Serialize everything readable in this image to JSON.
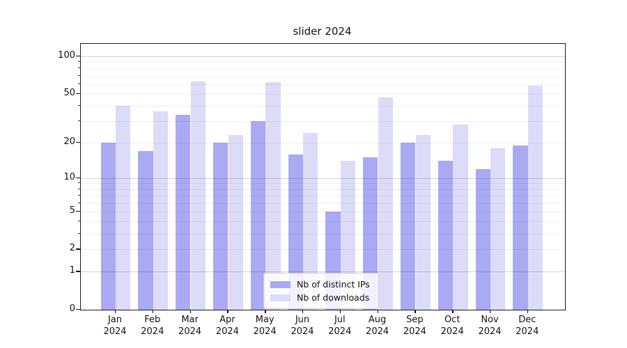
{
  "title": "slider 2024",
  "chart_data": {
    "type": "bar",
    "title": "slider 2024",
    "categories": [
      {
        "month": "Jan",
        "year": "2024"
      },
      {
        "month": "Feb",
        "year": "2024"
      },
      {
        "month": "Mar",
        "year": "2024"
      },
      {
        "month": "Apr",
        "year": "2024"
      },
      {
        "month": "May",
        "year": "2024"
      },
      {
        "month": "Jun",
        "year": "2024"
      },
      {
        "month": "Jul",
        "year": "2024"
      },
      {
        "month": "Aug",
        "year": "2024"
      },
      {
        "month": "Sep",
        "year": "2024"
      },
      {
        "month": "Oct",
        "year": "2024"
      },
      {
        "month": "Nov",
        "year": "2024"
      },
      {
        "month": "Dec",
        "year": "2024"
      }
    ],
    "series": [
      {
        "name": "Nb of distinct IPs",
        "color": "#a9a9f4",
        "values": [
          20,
          17,
          34,
          20,
          30,
          16,
          5,
          15,
          20,
          14,
          12,
          19
        ]
      },
      {
        "name": "Nb of downloads",
        "color": "#dcdcf8",
        "values": [
          40,
          36,
          63,
          23,
          62,
          24,
          14,
          47,
          23,
          28,
          18,
          58
        ]
      }
    ],
    "yscale": "log1p",
    "ylim": [
      0,
      126
    ],
    "y_tick_values": [
      100,
      50,
      20,
      10,
      5,
      2,
      1,
      0
    ],
    "y_minor_grid_values": [
      2,
      3,
      4,
      5,
      6,
      7,
      8,
      9,
      20,
      30,
      40,
      50,
      60,
      70,
      80,
      90
    ],
    "y_major_grid_values": [
      1,
      10,
      100
    ],
    "grid": "horizontal, drawn over bars",
    "legend_position": "lower center",
    "xlabel": "",
    "ylabel": ""
  }
}
